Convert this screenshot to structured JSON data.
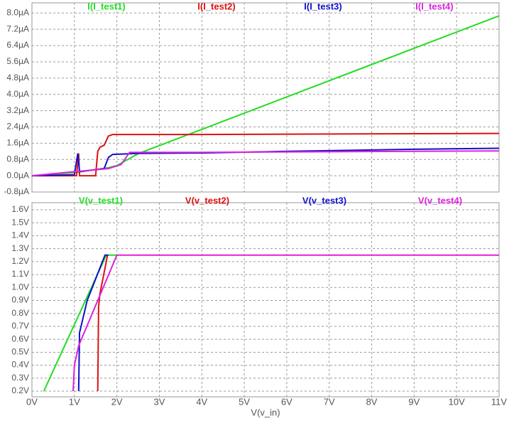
{
  "chart_data": [
    {
      "type": "line",
      "xlim": [
        0,
        11
      ],
      "xticks": [
        0,
        1,
        2,
        3,
        4,
        5,
        6,
        7,
        8,
        9,
        10,
        11
      ],
      "ylim": [
        -0.8,
        8.5
      ],
      "grid": true,
      "yticks": [
        {
          "value": -0.8,
          "label": "-0.8µA"
        },
        {
          "value": 0,
          "label": "0.0µA"
        },
        {
          "value": 0.8,
          "label": "0.8µA"
        },
        {
          "value": 1.6,
          "label": "1.6µA"
        },
        {
          "value": 2.4,
          "label": "2.4µA"
        },
        {
          "value": 3.2,
          "label": "3.2µA"
        },
        {
          "value": 4,
          "label": "4.0µA"
        },
        {
          "value": 4.8,
          "label": "4.8µA"
        },
        {
          "value": 5.6,
          "label": "5.6µA"
        },
        {
          "value": 6.4,
          "label": "6.4µA"
        },
        {
          "value": 7.2,
          "label": "7.2µA"
        },
        {
          "value": 8,
          "label": "8.0µA"
        }
      ],
      "series": [
        {
          "name": "I(I_test1)",
          "color": "#22dd22",
          "x": [
            0,
            1,
            1.5,
            1.8,
            2,
            2.5,
            4,
            11
          ],
          "values": [
            0,
            0.15,
            0.3,
            0.4,
            0.5,
            1.08,
            2.28,
            7.86
          ]
        },
        {
          "name": "I(I_test2)",
          "color": "#dd1111",
          "x": [
            0,
            1.05,
            1.1,
            1.12,
            1.5,
            1.55,
            1.6,
            1.7,
            1.8,
            1.9,
            4,
            11
          ],
          "values": [
            0,
            0,
            1.1,
            0,
            0,
            1.2,
            1.4,
            1.5,
            1.95,
            2.03,
            2.03,
            2.08
          ]
        },
        {
          "name": "I(I_test3)",
          "color": "#1111cc",
          "x": [
            0,
            1,
            1.08,
            1.12,
            1.7,
            1.8,
            1.9,
            2.5,
            4,
            6,
            9,
            11
          ],
          "values": [
            0,
            0.05,
            1.1,
            0.2,
            0.35,
            0.9,
            1.05,
            1.1,
            1.12,
            1.2,
            1.3,
            1.35
          ]
        },
        {
          "name": "I(I_test4)",
          "color": "#dd22dd",
          "x": [
            0,
            1,
            1.8,
            2.1,
            2.3,
            4,
            11
          ],
          "values": [
            0,
            0.2,
            0.35,
            0.55,
            1.15,
            1.15,
            1.22
          ]
        }
      ]
    },
    {
      "type": "line",
      "xlabel": "V(v_in)",
      "xlim": [
        0,
        11
      ],
      "ylim": [
        0.156,
        1.655
      ],
      "grid": true,
      "xticks": [
        {
          "value": 0,
          "label": "0V"
        },
        {
          "value": 1,
          "label": "1V"
        },
        {
          "value": 2,
          "label": "2V"
        },
        {
          "value": 3,
          "label": "3V"
        },
        {
          "value": 4,
          "label": "4V"
        },
        {
          "value": 5,
          "label": "5V"
        },
        {
          "value": 6,
          "label": "6V"
        },
        {
          "value": 7,
          "label": "7V"
        },
        {
          "value": 8,
          "label": "8V"
        },
        {
          "value": 9,
          "label": "9V"
        },
        {
          "value": 10,
          "label": "10V"
        },
        {
          "value": 11,
          "label": "11V"
        }
      ],
      "yticks": [
        {
          "value": 0.2,
          "label": "0.2V"
        },
        {
          "value": 0.3,
          "label": "0.3V"
        },
        {
          "value": 0.4,
          "label": "0.4V"
        },
        {
          "value": 0.5,
          "label": "0.5V"
        },
        {
          "value": 0.6,
          "label": "0.6V"
        },
        {
          "value": 0.7,
          "label": "0.7V"
        },
        {
          "value": 0.8,
          "label": "0.8V"
        },
        {
          "value": 0.9,
          "label": "0.9V"
        },
        {
          "value": 1.0,
          "label": "1.0V"
        },
        {
          "value": 1.1,
          "label": "1.1V"
        },
        {
          "value": 1.2,
          "label": "1.2V"
        },
        {
          "value": 1.3,
          "label": "1.3V"
        },
        {
          "value": 1.4,
          "label": "1.4V"
        },
        {
          "value": 1.5,
          "label": "1.5V"
        },
        {
          "value": 1.6,
          "label": "1.6V"
        }
      ],
      "series": [
        {
          "name": "V(v_test1)",
          "color": "#22dd22",
          "x": [
            0.28,
            1.75,
            2
          ],
          "values": [
            0.2,
            1.25,
            1.25
          ]
        },
        {
          "name": "V(v_test2)",
          "color": "#dd1111",
          "x": [
            1.55,
            1.57,
            1.6,
            1.78
          ],
          "values": [
            0.2,
            0.85,
            0.95,
            1.25
          ]
        },
        {
          "name": "V(v_test3)",
          "color": "#1111cc",
          "x": [
            1.1,
            1.12,
            1.3,
            1.72,
            1.8
          ],
          "values": [
            0.2,
            0.65,
            0.9,
            1.25,
            1.25
          ]
        },
        {
          "name": "V(v_test4)",
          "color": "#dd22dd",
          "x": [
            0.97,
            1.0,
            1.1,
            2.0,
            11
          ],
          "values": [
            0.2,
            0.4,
            0.55,
            1.25,
            1.25
          ]
        }
      ]
    }
  ]
}
